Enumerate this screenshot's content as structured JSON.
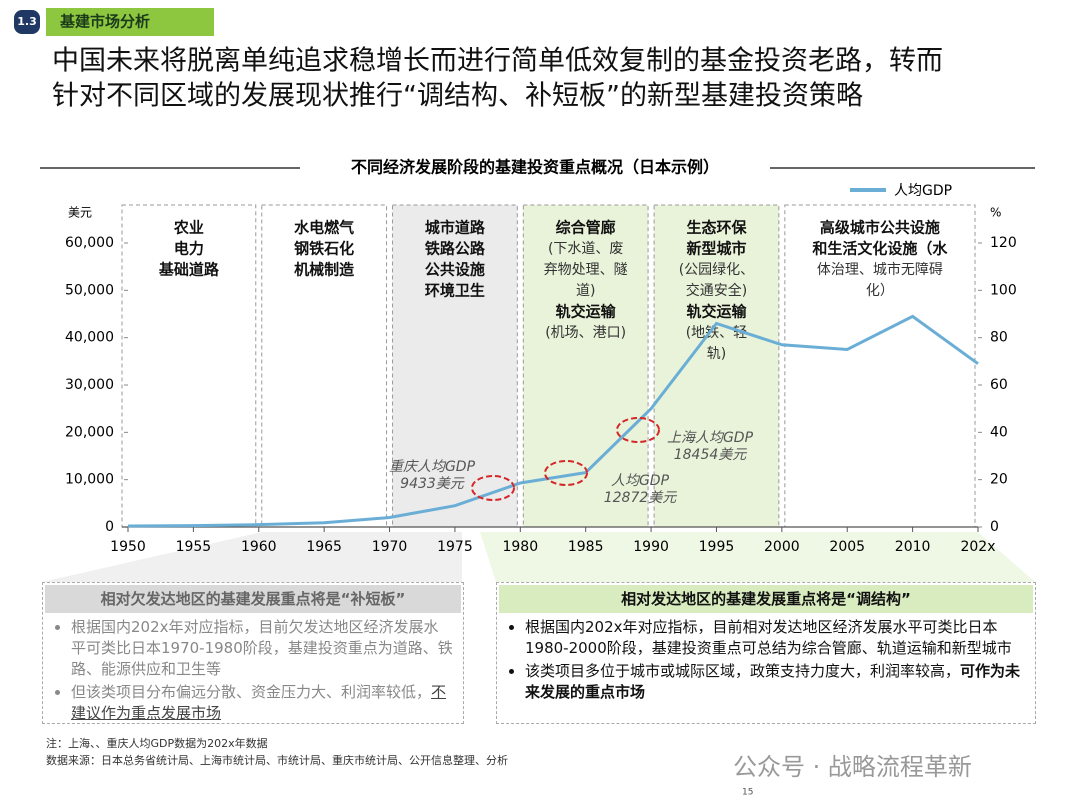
{
  "header": {
    "section": "1.3",
    "tag": "基建市场分析",
    "title_lines": [
      "中国未来将脱离单纯追求稳增长而进行简单低效复制的基金投资老路，转而",
      "针对不同区域的发展现状推行“调结构、补短板”的新型基建投资策略"
    ]
  },
  "chart_data": {
    "type": "line",
    "title": "不同经济发展阶段的基建投资重点概况（日本示例）",
    "ylabel": "美元",
    "y2label": "%",
    "categories": [
      "1950",
      "1955",
      "1960",
      "1965",
      "1970",
      "1975",
      "1980",
      "1985",
      "1990",
      "1995",
      "2000",
      "2005",
      "2010",
      "202x"
    ],
    "series": [
      {
        "name": "人均GDP",
        "color": "#6aaed6",
        "values": [
          200,
          300,
          500,
          900,
          2000,
          4500,
          9300,
          11500,
          25000,
          43000,
          38500,
          37500,
          44500,
          34500
        ]
      }
    ],
    "ylim": [
      0,
      60000
    ],
    "yticks": [
      0,
      {
        "value": 10000,
        "label": "10,000"
      },
      {
        "value": 20000,
        "label": "20,000"
      },
      {
        "value": 30000,
        "label": "30,000"
      },
      {
        "value": 40000,
        "label": "40,000"
      },
      {
        "value": 50000,
        "label": "50,000"
      },
      {
        "value": 60000,
        "label": "60,000"
      }
    ],
    "y2lim": [
      0,
      120
    ],
    "y2ticks": [
      0,
      20,
      40,
      60,
      80,
      100,
      120
    ],
    "legend": "top-right",
    "stages": [
      {
        "fill": "#ffffff",
        "blocks": [
          {
            "bold": true,
            "lines": [
              "农业",
              "电力",
              "基础道路"
            ]
          }
        ]
      },
      {
        "fill": "#ffffff",
        "blocks": [
          {
            "bold": true,
            "lines": [
              "水电燃气",
              "钢铁石化",
              "机械制造"
            ]
          }
        ]
      },
      {
        "fill": "#ebebeb",
        "blocks": [
          {
            "bold": true,
            "lines": [
              "城市道路",
              "铁路公路",
              "公共设施",
              "环境卫生"
            ]
          }
        ]
      },
      {
        "fill": "#e8f3da",
        "blocks": [
          {
            "bold": true,
            "lines": [
              "综合管廊"
            ]
          },
          {
            "bold": false,
            "lines": [
              "(下水道、废",
              "弃物处理、隧",
              "道)"
            ]
          },
          {
            "bold": true,
            "lines": [
              "轨交运输"
            ]
          },
          {
            "bold": false,
            "lines": [
              "(机场、港口)"
            ]
          }
        ]
      },
      {
        "fill": "#e8f3da",
        "blocks": [
          {
            "bold": true,
            "lines": [
              "生态环保",
              "新型城市"
            ]
          },
          {
            "bold": false,
            "lines": [
              "(公园绿化、",
              "交通安全)"
            ]
          },
          {
            "bold": true,
            "lines": [
              "轨交运输"
            ]
          },
          {
            "bold": false,
            "lines": [
              "(地铁、轻",
              "轨)"
            ]
          }
        ]
      },
      {
        "fill": "#ffffff",
        "blocks": [
          {
            "bold": true,
            "lines": [
              "高级城市公共设施",
              "和生活文化设施（水"
            ]
          },
          {
            "bold": false,
            "lines": [
              "体治理、城市无障碍",
              "化）"
            ]
          }
        ]
      }
    ],
    "annotations": [
      {
        "lines": [
          "重庆人均GDP",
          "9433美元"
        ]
      },
      {
        "lines": [
          "人均GDP",
          "12872美元"
        ]
      },
      {
        "lines": [
          "上海人均GDP",
          "18454美元"
        ]
      }
    ]
  },
  "panels": {
    "left": {
      "title": "相对欠发达地区的基建发展重点将是“补短板”",
      "bullets": [
        [
          "根据国内202x年对应指标，目前欠发达地区经济发展水平可类比日本1970-1980阶段，基建投资重点为道路、铁路、能源供应和卫生等"
        ],
        [
          "但该类项目分布偏远分散、资金压力大、利润率较低，",
          "不建议作为重点发展市场"
        ]
      ]
    },
    "right": {
      "title": "相对发达地区的基建发展重点将是“调结构”",
      "bullets": [
        [
          "根据国内202x年对应指标，目前相对发达地区经济发展水平可类比日本1980-2000阶段，基建投资重点可总结为综合管廊、轨道运输和新型城市"
        ],
        [
          "该类项目多位于城市或城际区域，政策支持力度大，利润率较高，",
          "可作为未来发展的重点市场"
        ]
      ]
    }
  },
  "footer": {
    "note": "注：上海、、重庆人均GDP数据为202x年数据",
    "source": "数据来源：日本总务省统计局、上海市统计局、市统计局、重庆市统计局、公开信息整理、分析",
    "watermark": "公众号 · 战略流程革新",
    "page": "15"
  }
}
